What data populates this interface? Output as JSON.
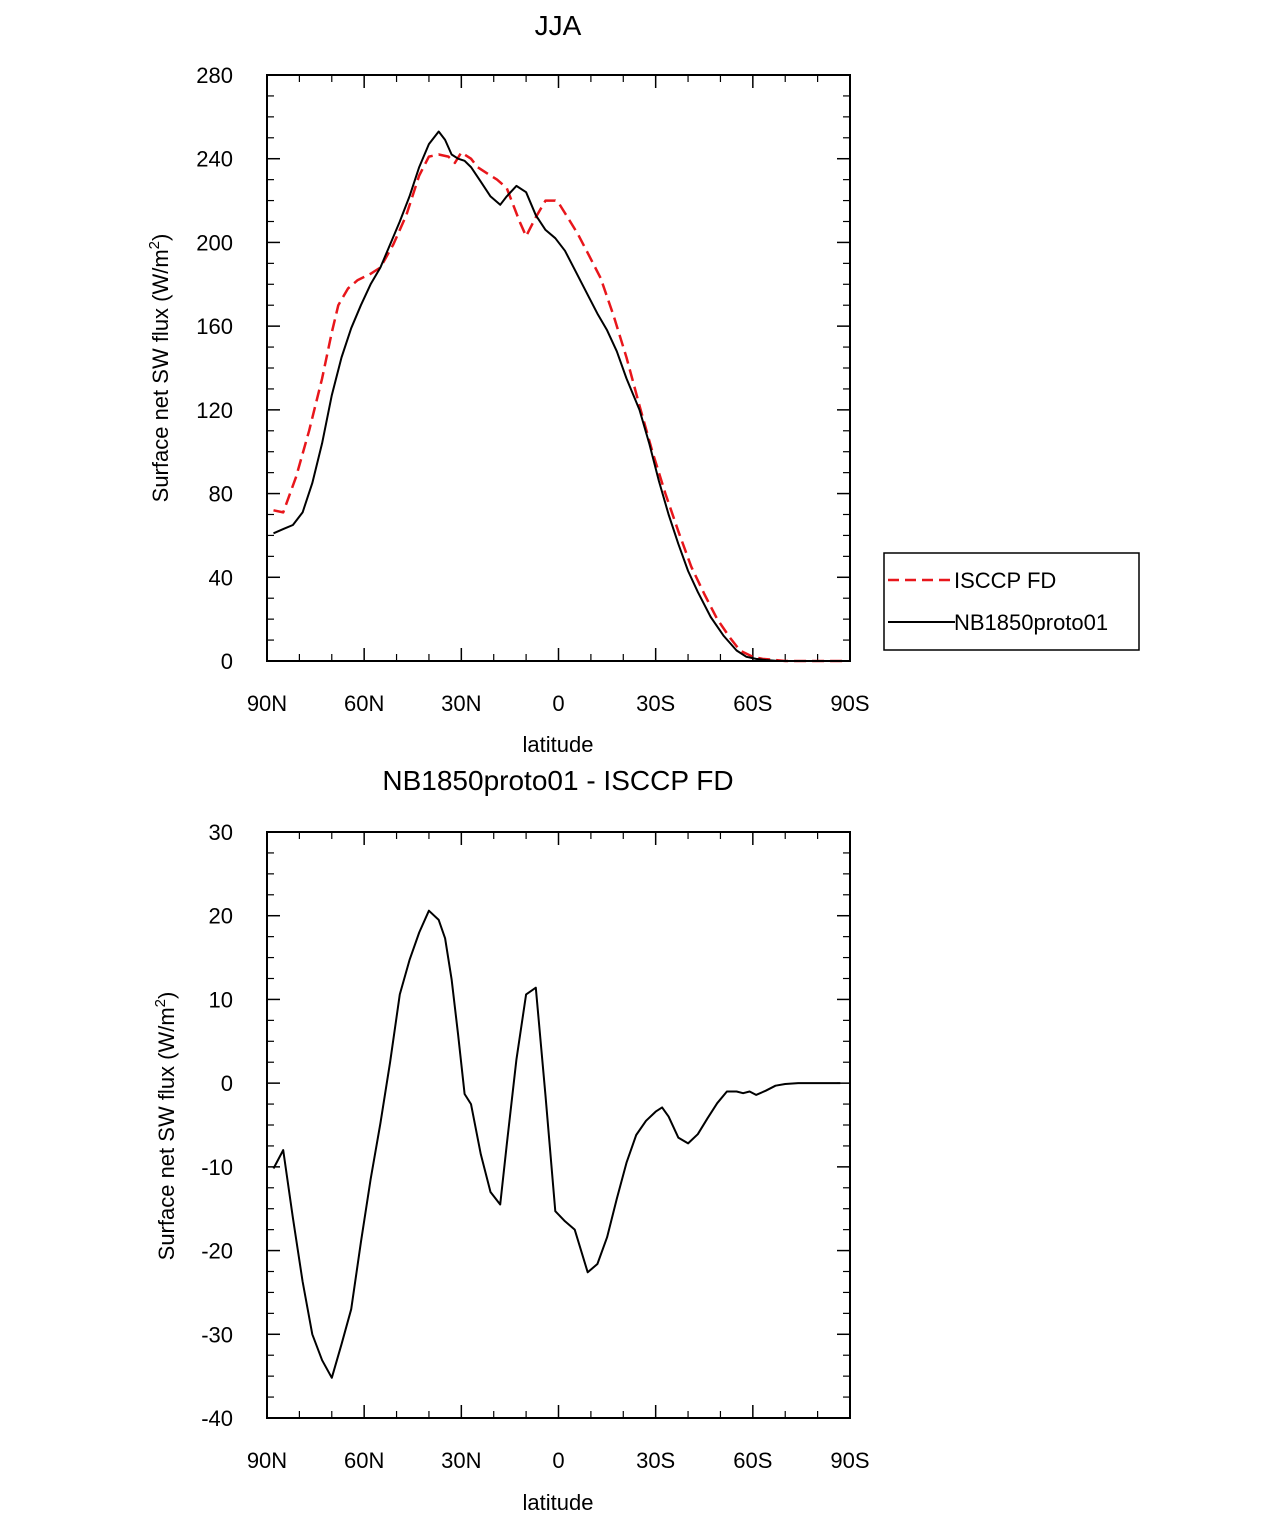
{
  "chart_data": [
    {
      "type": "line",
      "title": "JJA",
      "xlabel": "latitude",
      "ylabel": "Surface net SW flux (W/m",
      "ylabel_sup": "2",
      "ylabel_end": ")",
      "xlim": [
        90,
        -90
      ],
      "ylim": [
        0,
        280
      ],
      "xticks": [
        90,
        60,
        30,
        0,
        -30,
        -60,
        -90
      ],
      "xtick_labels": [
        "90N",
        "60N",
        "30N",
        "0",
        "30S",
        "60S",
        "90S"
      ],
      "yticks": [
        0,
        40,
        80,
        120,
        160,
        200,
        240,
        280
      ],
      "ytick_labels": [
        "0",
        "40",
        "80",
        "120",
        "160",
        "200",
        "240",
        "280"
      ],
      "legend_position": "right",
      "series": [
        {
          "name": "ISCCP FD",
          "color": "#e8161b",
          "dash": "dashed",
          "x": [
            88,
            85,
            81,
            77,
            73,
            70,
            68,
            65,
            62,
            58,
            55,
            51,
            47,
            43,
            40,
            37,
            34,
            32,
            30,
            27,
            25,
            22,
            19,
            16,
            12,
            10,
            7,
            4,
            1,
            0,
            -2,
            -6,
            -9,
            -13,
            -17,
            -21,
            -25,
            -29,
            -33,
            -37,
            -41,
            -45,
            -49,
            -53,
            -56,
            -60,
            -63,
            -67,
            -70,
            -75,
            -80,
            -86,
            -88
          ],
          "y": [
            72,
            71,
            88,
            110,
            135,
            157,
            170,
            178,
            182,
            185,
            188,
            199,
            213,
            232,
            241,
            242,
            241,
            238,
            243,
            240,
            236,
            233,
            230,
            226,
            210,
            203,
            212,
            220,
            220,
            219,
            214,
            204,
            195,
            183,
            165,
            145,
            122,
            100,
            80,
            62,
            45,
            32,
            20,
            11,
            5,
            2,
            1,
            0.5,
            0,
            0,
            0,
            0,
            0
          ]
        },
        {
          "name": "NB1850proto01",
          "color": "#000000",
          "dash": "solid",
          "x": [
            88,
            85,
            82,
            79,
            76,
            73,
            70,
            67,
            64,
            61,
            58,
            55,
            52,
            49,
            46,
            43,
            40,
            37,
            35,
            33,
            31,
            29,
            27,
            24,
            21,
            18,
            16,
            13,
            10,
            7,
            4,
            1,
            -2,
            -5,
            -9,
            -12,
            -15,
            -18,
            -21,
            -25,
            -28,
            -31,
            -34,
            -37,
            -40,
            -43,
            -47,
            -51,
            -55,
            -58,
            -61,
            -64,
            -68,
            -72,
            -76,
            -80,
            -84,
            -88
          ],
          "y": [
            61,
            63,
            65,
            71,
            85,
            104,
            127,
            145,
            159,
            170,
            180,
            188,
            199,
            210,
            222,
            236,
            247,
            253,
            249,
            242,
            240,
            239,
            236,
            229,
            222,
            218,
            222,
            227,
            224,
            213,
            206,
            202,
            196,
            187,
            175,
            166,
            158,
            148,
            135,
            120,
            104,
            86,
            70,
            56,
            43,
            33,
            21,
            12,
            5,
            2,
            1,
            0.5,
            0,
            0,
            0,
            0,
            0,
            0
          ]
        }
      ]
    },
    {
      "type": "line",
      "title": "NB1850proto01 - ISCCP FD",
      "xlabel": "latitude",
      "ylabel": "Surface net SW flux (W/m",
      "ylabel_sup": "2",
      "ylabel_end": ")",
      "xlim": [
        90,
        -90
      ],
      "ylim": [
        -40,
        30
      ],
      "xticks": [
        90,
        60,
        30,
        0,
        -30,
        -60,
        -90
      ],
      "xtick_labels": [
        "90N",
        "60N",
        "30N",
        "0",
        "30S",
        "60S",
        "90S"
      ],
      "yticks": [
        -40,
        -30,
        -20,
        -10,
        0,
        10,
        20,
        30
      ],
      "ytick_labels": [
        "-40",
        "-30",
        "-20",
        "-10",
        "0",
        "10",
        "20",
        "30"
      ],
      "series": [
        {
          "name": "NB1850proto01 - ISCCP FD",
          "color": "#000000",
          "dash": "solid",
          "x": [
            88,
            85,
            82,
            79,
            76,
            73,
            70,
            67,
            64,
            61,
            58,
            55,
            52,
            49,
            46,
            43,
            40,
            37,
            35,
            33,
            31,
            29,
            27,
            24,
            21,
            18,
            16,
            13,
            10,
            7,
            4,
            1,
            -2,
            -5,
            -9,
            -12,
            -15,
            -18,
            -21,
            -24,
            -27,
            -30,
            -32,
            -34,
            -37,
            -40,
            -43,
            -46,
            -49,
            -52,
            -55,
            -57,
            -59,
            -61,
            -64,
            -67,
            -70,
            -74,
            -78,
            -82,
            -87
          ],
          "y": [
            -10.2,
            -8,
            -16.1,
            -23.7,
            -30,
            -33.1,
            -35.2,
            -31.2,
            -27,
            -19,
            -11.5,
            -4.8,
            2.5,
            10.6,
            14.7,
            18,
            20.6,
            19.5,
            17.3,
            12.4,
            5.8,
            -1.3,
            -2.5,
            -8.5,
            -13,
            -14.5,
            -7.4,
            2.8,
            10.6,
            11.4,
            -1.5,
            -15.3,
            -16.5,
            -17.5,
            -22.6,
            -21.6,
            -18.4,
            -13.8,
            -9.5,
            -6.2,
            -4.5,
            -3.4,
            -2.9,
            -4,
            -6.5,
            -7.2,
            -6.1,
            -4.2,
            -2.4,
            -1,
            -1,
            -1.2,
            -1,
            -1.4,
            -0.9,
            -0.3,
            -0.1,
            0,
            0,
            0,
            0
          ]
        }
      ]
    }
  ]
}
